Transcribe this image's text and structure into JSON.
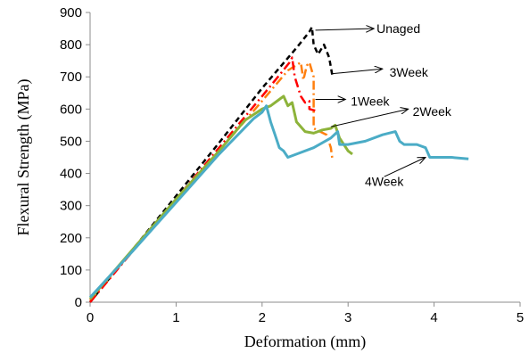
{
  "chart_data": {
    "type": "line",
    "title": "",
    "xlabel": "Deformation (mm)",
    "ylabel": "Flexural Strength (MPa)",
    "xlim": [
      0,
      5
    ],
    "ylim": [
      0,
      900
    ],
    "xticks": [
      "0",
      "1",
      "2",
      "3",
      "4",
      "5"
    ],
    "yticks": [
      "0",
      "100",
      "200",
      "300",
      "400",
      "500",
      "600",
      "700",
      "800",
      "900"
    ],
    "grid": false,
    "legend": "none",
    "series": [
      {
        "name": "Unaged",
        "color": "#000000",
        "style": "dashed",
        "points": [
          [
            0.0,
            0
          ],
          [
            0.5,
            165
          ],
          [
            1.0,
            330
          ],
          [
            1.5,
            495
          ],
          [
            2.0,
            665
          ],
          [
            2.4,
            790
          ],
          [
            2.55,
            840
          ],
          [
            2.58,
            855
          ],
          [
            2.6,
            800
          ],
          [
            2.65,
            770
          ],
          [
            2.72,
            800
          ],
          [
            2.78,
            760
          ],
          [
            2.82,
            700
          ]
        ]
      },
      {
        "name": "3Week",
        "color": "#ff7f0e",
        "style": "dashdot",
        "points": [
          [
            0.0,
            5
          ],
          [
            0.5,
            160
          ],
          [
            1.0,
            315
          ],
          [
            1.5,
            470
          ],
          [
            2.0,
            625
          ],
          [
            2.3,
            720
          ],
          [
            2.45,
            745
          ],
          [
            2.48,
            690
          ],
          [
            2.52,
            735
          ],
          [
            2.55,
            745
          ],
          [
            2.6,
            700
          ],
          [
            2.6,
            540
          ],
          [
            2.75,
            520
          ],
          [
            2.8,
            480
          ],
          [
            2.82,
            440
          ]
        ]
      },
      {
        "name": "1Week",
        "color": "#ff0000",
        "style": "dashdot",
        "points": [
          [
            0.0,
            0
          ],
          [
            0.5,
            160
          ],
          [
            1.0,
            320
          ],
          [
            1.5,
            480
          ],
          [
            2.0,
            640
          ],
          [
            2.2,
            705
          ],
          [
            2.32,
            745
          ],
          [
            2.35,
            760
          ],
          [
            2.38,
            700
          ],
          [
            2.45,
            640
          ],
          [
            2.5,
            620
          ],
          [
            2.55,
            625
          ],
          [
            2.55,
            600
          ],
          [
            2.62,
            595
          ]
        ]
      },
      {
        "name": "2Week",
        "color": "#8db33a",
        "style": "solid",
        "points": [
          [
            0.0,
            10
          ],
          [
            0.5,
            165
          ],
          [
            1.0,
            320
          ],
          [
            1.5,
            470
          ],
          [
            1.8,
            565
          ],
          [
            2.0,
            600
          ],
          [
            2.1,
            610
          ],
          [
            2.2,
            630
          ],
          [
            2.25,
            640
          ],
          [
            2.3,
            610
          ],
          [
            2.35,
            620
          ],
          [
            2.4,
            560
          ],
          [
            2.5,
            530
          ],
          [
            2.6,
            525
          ],
          [
            2.7,
            535
          ],
          [
            2.8,
            540
          ],
          [
            2.85,
            550
          ],
          [
            2.9,
            510
          ],
          [
            3.0,
            470
          ],
          [
            3.05,
            460
          ]
        ]
      },
      {
        "name": "4Week",
        "color": "#4bacc6",
        "style": "solid",
        "points": [
          [
            0.0,
            15
          ],
          [
            0.5,
            160
          ],
          [
            1.0,
            310
          ],
          [
            1.5,
            460
          ],
          [
            1.9,
            570
          ],
          [
            2.0,
            590
          ],
          [
            2.05,
            610
          ],
          [
            2.1,
            560
          ],
          [
            2.15,
            520
          ],
          [
            2.2,
            480
          ],
          [
            2.25,
            470
          ],
          [
            2.3,
            450
          ],
          [
            2.4,
            460
          ],
          [
            2.6,
            480
          ],
          [
            2.8,
            510
          ],
          [
            2.88,
            530
          ],
          [
            2.9,
            490
          ],
          [
            3.0,
            490
          ],
          [
            3.2,
            500
          ],
          [
            3.4,
            520
          ],
          [
            3.55,
            530
          ],
          [
            3.6,
            500
          ],
          [
            3.65,
            490
          ],
          [
            3.8,
            490
          ],
          [
            3.9,
            480
          ],
          [
            3.95,
            450
          ],
          [
            4.2,
            450
          ],
          [
            4.4,
            445
          ]
        ]
      }
    ],
    "annotations": [
      {
        "text": "Unaged",
        "arrow_from": [
          2.62,
          845
        ],
        "arrow_to": [
          3.3,
          850
        ],
        "label_at": [
          3.3,
          850
        ],
        "anchor": "start"
      },
      {
        "text": "3Week",
        "arrow_from": [
          2.82,
          710
        ],
        "arrow_to": [
          3.4,
          725
        ],
        "label_at": [
          3.45,
          715
        ],
        "anchor": "start"
      },
      {
        "text": "1Week",
        "arrow_from": [
          2.62,
          630
        ],
        "arrow_to": [
          2.97,
          630
        ],
        "label_at": [
          3.0,
          625
        ],
        "anchor": "start"
      },
      {
        "text": "2Week",
        "arrow_from": [
          2.8,
          545
        ],
        "arrow_to": [
          3.7,
          600
        ],
        "label_at": [
          3.72,
          593
        ],
        "anchor": "start"
      },
      {
        "text": "4Week",
        "arrow_from": [
          3.42,
          390
        ],
        "arrow_to": [
          3.9,
          450
        ],
        "label_at": [
          3.42,
          375
        ],
        "anchor": "middle"
      }
    ]
  }
}
